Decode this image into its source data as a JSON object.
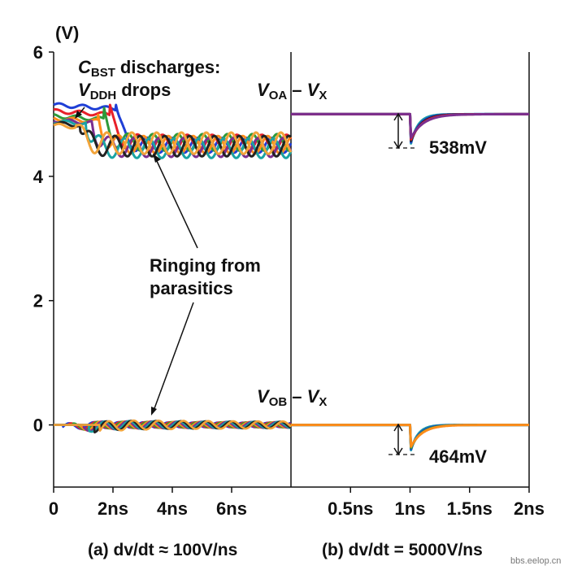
{
  "chart_data": {
    "type": "line",
    "y_unit": "(V)",
    "ylim": [
      -1,
      6
    ],
    "y_ticks": [
      0,
      2,
      4,
      6
    ],
    "panels": [
      {
        "id": "a",
        "caption": "(a) dv/dt ≈ 100V/ns",
        "x_unit": "ns",
        "xlim": [
          0,
          8
        ],
        "x_ticks": [
          0,
          2,
          4,
          6
        ],
        "x_tick_labels": [
          "0",
          "2ns",
          "4ns",
          "6ns"
        ],
        "upper": {
          "start_levels": [
            5.15,
            5.05,
            4.97,
            4.93,
            4.9,
            4.88,
            4.85,
            4.82
          ],
          "drop_times": [
            2.1,
            1.9,
            1.7,
            1.5,
            1.3,
            1.1,
            0.9,
            0.75
          ],
          "settled_level": 4.5,
          "ringing_amplitude": 0.15
        },
        "lower": {
          "level": 0.0,
          "ringing_amplitude": 0.07
        }
      },
      {
        "id": "b",
        "caption": "(b) dv/dt = 5000V/ns",
        "x_unit": "ns",
        "xlim": [
          0,
          2
        ],
        "x_ticks": [
          0.5,
          1,
          1.5,
          2
        ],
        "x_tick_labels": [
          "0.5ns",
          "1ns",
          "1.5ns",
          "2ns"
        ],
        "upper": {
          "level": 5.0,
          "dip_time": 1.0,
          "dip_mV": 538
        },
        "lower": {
          "level": 0.0,
          "dip_time": 1.0,
          "dip_mV": 464
        }
      }
    ],
    "series_colors": [
      "#1f3fd6",
      "#e8202a",
      "#2e9a3a",
      "#ff8c1a",
      "#7b2f8f",
      "#1aa3a3",
      "#222222",
      "#f2a43a"
    ],
    "annotations": {
      "cbst_main": "C",
      "cbst_sub": "BST",
      "cbst_rest": "discharges:",
      "vddh_main": "V",
      "vddh_sub": "DDH",
      "vddh_rest": "drops",
      "ringing_line1": "Ringing from",
      "ringing_line2": "parasitics",
      "voa_v": "V",
      "voa_sub": "OA",
      "vx_dash": " – ",
      "vx_v": "V",
      "vx_sub": "X",
      "vob_v": "V",
      "vob_sub": "OB",
      "dip_a_label": "538mV",
      "dip_b_label": "464mV"
    },
    "watermark": "bbs.eelop.cn"
  }
}
